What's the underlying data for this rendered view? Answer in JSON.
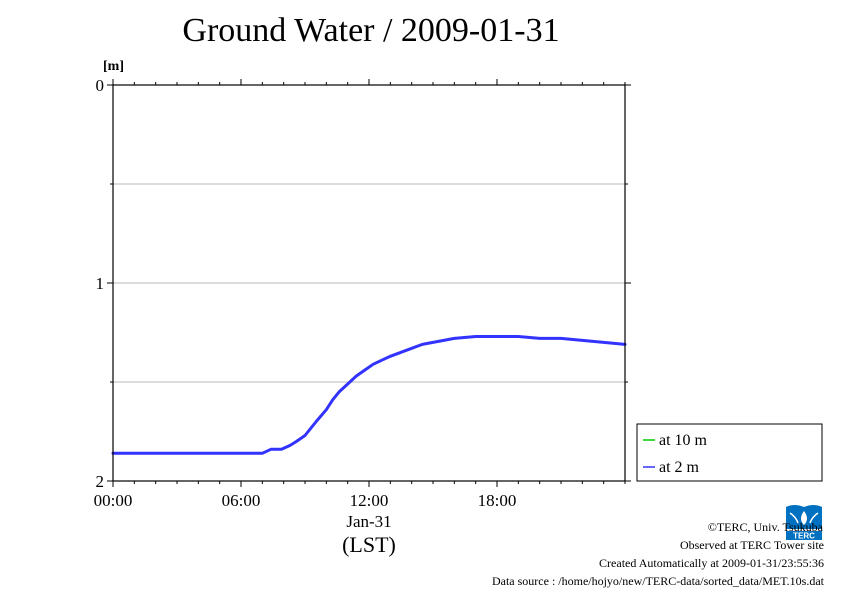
{
  "title": "Ground Water / 2009-01-31",
  "chart_data": {
    "type": "line",
    "title": "Ground Water / 2009-01-31",
    "y_unit_label": "[m]",
    "ylim": [
      2,
      0
    ],
    "y_inverted": true,
    "y_ticks": [
      0,
      1,
      2
    ],
    "y_tick_labels": [
      "0",
      "1",
      "2"
    ],
    "y_minor_grid": [
      0.5,
      1,
      1.5
    ],
    "xlim_hours": [
      0,
      24
    ],
    "x_ticks_hours": [
      0,
      6,
      12,
      18
    ],
    "x_tick_labels": [
      "00:00",
      "06:00",
      "12:00",
      "18:00"
    ],
    "x_date_label": "Jan-31",
    "x_axis_label": "(LST)",
    "grid": true,
    "legend_position": "right-bottom",
    "series": [
      {
        "name": "at 10 m",
        "color": "#00cc00",
        "x": [],
        "y": []
      },
      {
        "name": "at 2 m",
        "color": "#3333ff",
        "x": [
          0.0,
          1.0,
          2.0,
          3.0,
          4.0,
          5.0,
          6.0,
          7.0,
          7.2,
          7.4,
          7.6,
          7.9,
          8.3,
          8.6,
          9.0,
          9.3,
          9.6,
          10.0,
          10.3,
          10.6,
          11.0,
          11.4,
          11.8,
          12.2,
          12.6,
          13.0,
          13.5,
          14.0,
          14.5,
          15.0,
          15.5,
          16.0,
          17.0,
          18.0,
          19.0,
          20.0,
          21.0,
          22.0,
          23.0,
          24.0
        ],
        "y": [
          1.86,
          1.86,
          1.86,
          1.86,
          1.86,
          1.86,
          1.86,
          1.86,
          1.85,
          1.84,
          1.84,
          1.84,
          1.82,
          1.8,
          1.77,
          1.73,
          1.69,
          1.64,
          1.59,
          1.55,
          1.51,
          1.47,
          1.44,
          1.41,
          1.39,
          1.37,
          1.35,
          1.33,
          1.31,
          1.3,
          1.29,
          1.28,
          1.27,
          1.27,
          1.27,
          1.28,
          1.28,
          1.29,
          1.3,
          1.31
        ]
      }
    ]
  },
  "footer": {
    "copyright": "©TERC, Univ. Tsukuba",
    "observed": "Observed at TERC Tower site",
    "created": "Created Automatically at 2009-01-31/23:55:36",
    "source": "Data source : /home/hojyo/new/TERC-data/sorted_data/MET.10s.dat"
  },
  "logo": {
    "text": "TERC",
    "color": "#0070c0"
  }
}
